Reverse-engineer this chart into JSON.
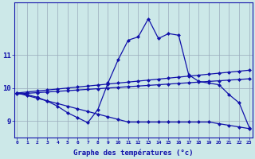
{
  "title": "Graphe des températures (°c)",
  "bg_color": "#cce8e8",
  "grid_color": "#99aabb",
  "line_color": "#1111aa",
  "ylabel_ticks": [
    9,
    10,
    11
  ],
  "ylim": [
    8.5,
    12.6
  ],
  "xlim": [
    -0.3,
    23.3
  ],
  "hours": [
    0,
    1,
    2,
    3,
    4,
    5,
    6,
    7,
    8,
    9,
    10,
    11,
    12,
    13,
    14,
    15,
    16,
    17,
    18,
    19,
    20,
    21,
    22,
    23
  ],
  "curve_temp": [
    9.85,
    9.8,
    9.72,
    9.6,
    9.45,
    9.25,
    9.1,
    8.95,
    9.35,
    10.15,
    10.85,
    11.45,
    11.55,
    12.1,
    11.5,
    11.65,
    11.6,
    10.4,
    10.2,
    10.15,
    10.1,
    9.8,
    9.55,
    8.8
  ],
  "curve_avg_high": [
    9.85,
    9.88,
    9.91,
    9.94,
    9.97,
    10.0,
    10.03,
    10.06,
    10.09,
    10.12,
    10.15,
    10.18,
    10.21,
    10.24,
    10.27,
    10.3,
    10.33,
    10.36,
    10.39,
    10.42,
    10.45,
    10.48,
    10.51,
    10.54
  ],
  "curve_avg_mid": [
    9.82,
    9.84,
    9.86,
    9.88,
    9.9,
    9.92,
    9.94,
    9.96,
    9.98,
    10.0,
    10.02,
    10.04,
    10.06,
    10.08,
    10.1,
    10.12,
    10.14,
    10.16,
    10.18,
    10.2,
    10.22,
    10.24,
    10.26,
    10.28
  ],
  "curve_min": [
    9.85,
    9.77,
    9.69,
    9.61,
    9.53,
    9.45,
    9.37,
    9.29,
    9.21,
    9.13,
    9.05,
    8.97,
    8.97,
    8.97,
    8.97,
    8.97,
    8.97,
    8.97,
    8.97,
    8.97,
    8.92,
    8.87,
    8.82,
    8.77
  ]
}
